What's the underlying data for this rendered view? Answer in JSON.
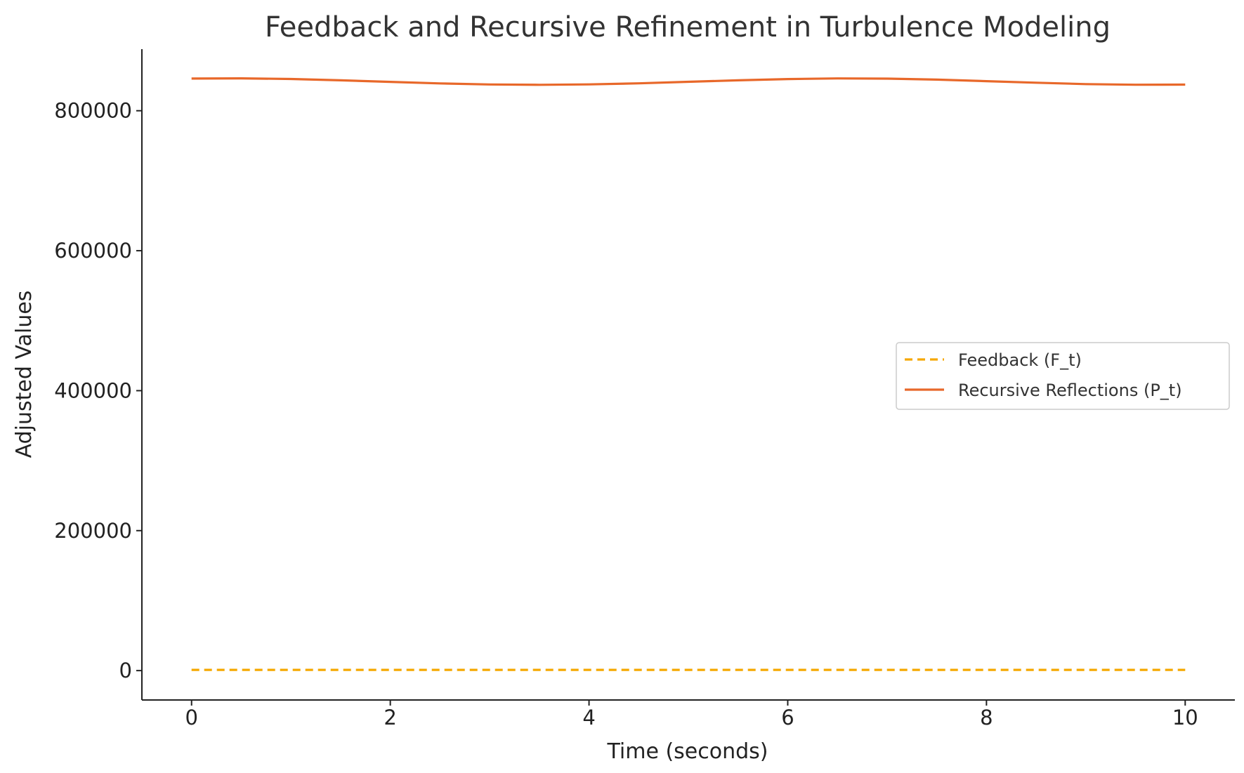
{
  "chart_data": {
    "type": "line",
    "title": "Feedback and Recursive Refinement in Turbulence Modeling",
    "xlabel": "Time (seconds)",
    "ylabel": "Adjusted Values",
    "xlim": [
      -0.5,
      10.5
    ],
    "ylim": [
      -42000,
      888000
    ],
    "xticks": [
      0,
      2,
      4,
      6,
      8,
      10
    ],
    "xtick_labels": [
      "0",
      "2",
      "4",
      "6",
      "8",
      "10"
    ],
    "yticks": [
      0,
      200000,
      400000,
      600000,
      800000
    ],
    "ytick_labels": [
      "0",
      "200000",
      "400000",
      "600000",
      "800000"
    ],
    "grid": false,
    "legend_position": "center-right",
    "series": [
      {
        "name": "Feedback (F_t)",
        "color": "#F5A800",
        "style": "dashed",
        "x": [
          0,
          0.5,
          1,
          1.5,
          2,
          2.5,
          3,
          3.5,
          4,
          4.5,
          5,
          5.5,
          6,
          6.5,
          7,
          7.5,
          8,
          8.5,
          9,
          9.5,
          10
        ],
        "y": [
          1000,
          1000,
          1000,
          1000,
          1000,
          1000,
          1000,
          1000,
          1000,
          1000,
          1000,
          1000,
          1000,
          1000,
          1000,
          1000,
          1000,
          1000,
          1000,
          1000,
          1000
        ]
      },
      {
        "name": "Recursive Reflections (P_t)",
        "color": "#E8682A",
        "style": "solid",
        "x": [
          0,
          0.5,
          1,
          1.5,
          2,
          2.5,
          3,
          3.5,
          4,
          4.5,
          5,
          5.5,
          6,
          6.5,
          7,
          7.5,
          8,
          8.5,
          9,
          9.5,
          10
        ],
        "y": [
          846000,
          846300,
          845400,
          843500,
          841200,
          839000,
          837500,
          837000,
          837600,
          839100,
          841300,
          843500,
          845300,
          846200,
          845900,
          844500,
          842300,
          840000,
          838000,
          837100,
          837300
        ]
      }
    ]
  }
}
